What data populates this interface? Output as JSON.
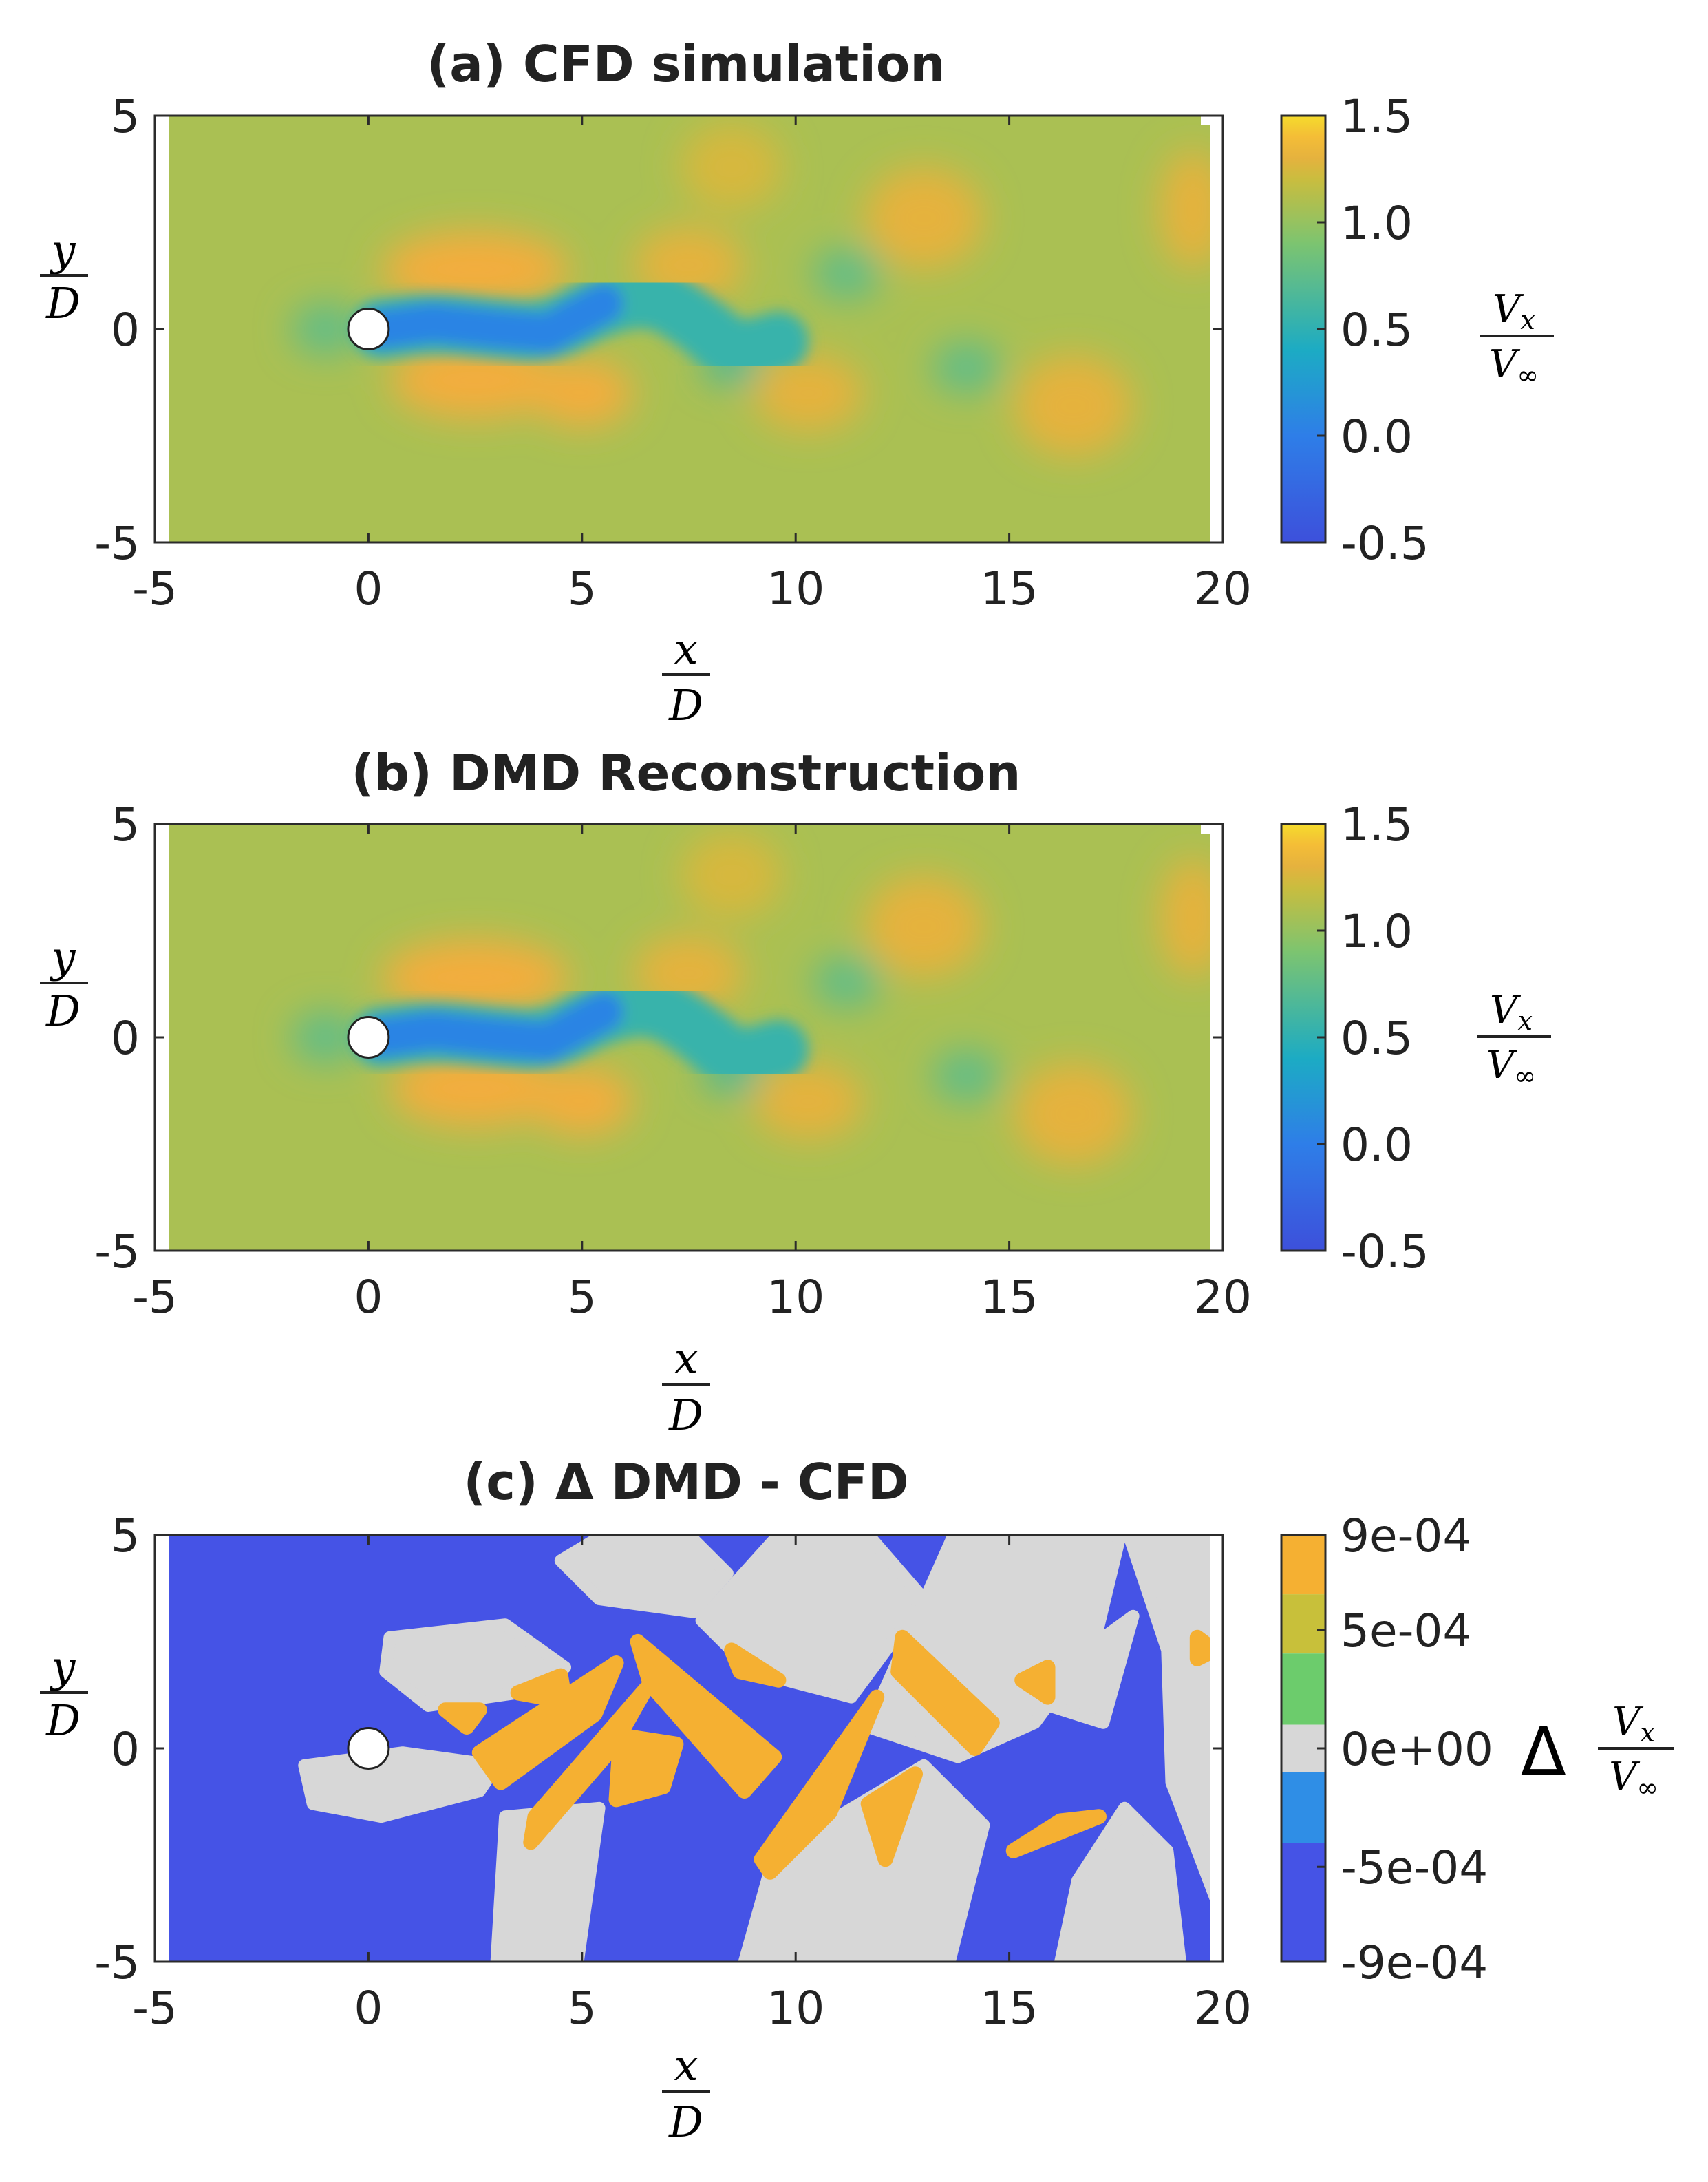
{
  "colors": {
    "field_low": "#3d50db",
    "field_blue": "#2e7ee8",
    "field_cyan": "#1cabc4",
    "field_green": "#7cc470",
    "field_olive": "#c9bd3f",
    "field_orange": "#f3ad3d",
    "field_yellow": "#f5dc2c",
    "diff_neg": "#4553e6",
    "diff_neg2": "#2f8ee6",
    "diff_zero": "#d7d7d7",
    "diff_pos_green": "#6ccc6c",
    "diff_pos_olive": "#c8c03a",
    "diff_pos_orange": "#f5b032",
    "cylinder": "#ffffff"
  },
  "chart_data": [
    {
      "panel": "a",
      "type": "heatmap",
      "title": "(a) CFD simulation",
      "xlabel": {
        "num": "x",
        "den": "D"
      },
      "ylabel": {
        "num": "y",
        "den": "D"
      },
      "xlim": [
        -5,
        20
      ],
      "ylim": [
        -5,
        5
      ],
      "xticks": [
        "-5",
        "0",
        "5",
        "10",
        "15",
        "20"
      ],
      "yticks": [
        "5",
        "0",
        "-5"
      ],
      "xtick_values": [
        -5,
        0,
        5,
        10,
        15,
        20
      ],
      "ytick_values": [
        5,
        0,
        -5
      ],
      "colorbar": {
        "label": {
          "num": "V",
          "num_sub": "x",
          "den": "V",
          "den_sub": "∞"
        },
        "ticks": [
          "1.5",
          "1.0",
          "0.5",
          "0.0",
          "-0.5"
        ],
        "tick_values": [
          1.5,
          1.0,
          0.5,
          0.0,
          -0.5
        ],
        "range": [
          -0.5,
          1.5
        ]
      },
      "cylinder": {
        "x": 0,
        "y": 0,
        "diameter": 1
      },
      "blobs": [
        {
          "x": 2.5,
          "y": 1.4,
          "rx": 2.2,
          "ry": 0.9,
          "value": 1.35
        },
        {
          "x": 2.5,
          "y": -1.2,
          "rx": 2.0,
          "ry": 0.9,
          "value": 1.35
        },
        {
          "x": 5.0,
          "y": -1.5,
          "rx": 1.2,
          "ry": 0.8,
          "value": 1.35
        },
        {
          "x": 7.5,
          "y": 1.5,
          "rx": 1.3,
          "ry": 0.9,
          "value": 1.3
        },
        {
          "x": 10.3,
          "y": -1.5,
          "rx": 1.3,
          "ry": 0.9,
          "value": 1.3
        },
        {
          "x": 13.0,
          "y": 2.6,
          "rx": 1.4,
          "ry": 1.2,
          "value": 1.3
        },
        {
          "x": 16.5,
          "y": -1.8,
          "rx": 1.4,
          "ry": 1.2,
          "value": 1.3
        },
        {
          "x": 19.3,
          "y": 2.8,
          "rx": 0.8,
          "ry": 1.4,
          "value": 1.3
        },
        {
          "x": 8.5,
          "y": 3.8,
          "rx": 1.2,
          "ry": 1.0,
          "value": 1.25
        },
        {
          "x": -1.0,
          "y": 0.0,
          "rx": 0.8,
          "ry": 0.6,
          "value": 0.75
        },
        {
          "x": 11.2,
          "y": 1.3,
          "rx": 0.8,
          "ry": 0.6,
          "value": 0.75
        },
        {
          "x": 14.0,
          "y": -0.9,
          "rx": 0.8,
          "ry": 0.6,
          "value": 0.75
        },
        {
          "x": 8.5,
          "y": -0.8,
          "rx": 0.7,
          "ry": 0.5,
          "value": 0.65
        }
      ],
      "wake_path": [
        [
          0.3,
          0.0
        ],
        [
          1.5,
          0.15
        ],
        [
          3.0,
          0.0
        ],
        [
          4.2,
          -0.1
        ],
        [
          5.5,
          0.6
        ],
        [
          6.7,
          0.8
        ],
        [
          7.8,
          0.1
        ],
        [
          8.6,
          -0.6
        ],
        [
          9.6,
          -0.3
        ]
      ]
    },
    {
      "panel": "b",
      "type": "heatmap",
      "title": "(b) DMD Reconstruction",
      "xlabel": {
        "num": "x",
        "den": "D"
      },
      "ylabel": {
        "num": "y",
        "den": "D"
      },
      "xlim": [
        -5,
        20
      ],
      "ylim": [
        -5,
        5
      ],
      "xticks": [
        "-5",
        "0",
        "5",
        "10",
        "15",
        "20"
      ],
      "yticks": [
        "5",
        "0",
        "-5"
      ],
      "xtick_values": [
        -5,
        0,
        5,
        10,
        15,
        20
      ],
      "ytick_values": [
        5,
        0,
        -5
      ],
      "colorbar": {
        "label": {
          "num": "V",
          "num_sub": "x",
          "den": "V",
          "den_sub": "∞"
        },
        "ticks": [
          "1.5",
          "1.0",
          "0.5",
          "0.0",
          "-0.5"
        ],
        "tick_values": [
          1.5,
          1.0,
          0.5,
          0.0,
          -0.5
        ],
        "range": [
          -0.5,
          1.5
        ]
      },
      "cylinder": {
        "x": 0,
        "y": 0,
        "diameter": 1
      },
      "blobs": [
        {
          "x": 2.5,
          "y": 1.4,
          "rx": 2.2,
          "ry": 0.9,
          "value": 1.35
        },
        {
          "x": 2.5,
          "y": -1.2,
          "rx": 2.0,
          "ry": 0.9,
          "value": 1.35
        },
        {
          "x": 5.0,
          "y": -1.5,
          "rx": 1.2,
          "ry": 0.8,
          "value": 1.35
        },
        {
          "x": 7.5,
          "y": 1.5,
          "rx": 1.3,
          "ry": 0.9,
          "value": 1.3
        },
        {
          "x": 10.3,
          "y": -1.5,
          "rx": 1.3,
          "ry": 0.9,
          "value": 1.3
        },
        {
          "x": 13.0,
          "y": 2.6,
          "rx": 1.4,
          "ry": 1.2,
          "value": 1.3
        },
        {
          "x": 16.5,
          "y": -1.8,
          "rx": 1.4,
          "ry": 1.2,
          "value": 1.3
        },
        {
          "x": 19.3,
          "y": 2.8,
          "rx": 0.8,
          "ry": 1.4,
          "value": 1.3
        },
        {
          "x": 8.5,
          "y": 3.8,
          "rx": 1.2,
          "ry": 1.0,
          "value": 1.25
        },
        {
          "x": -1.0,
          "y": 0.0,
          "rx": 0.8,
          "ry": 0.6,
          "value": 0.75
        },
        {
          "x": 11.2,
          "y": 1.3,
          "rx": 0.8,
          "ry": 0.6,
          "value": 0.75
        },
        {
          "x": 14.0,
          "y": -0.9,
          "rx": 0.8,
          "ry": 0.6,
          "value": 0.75
        },
        {
          "x": 8.5,
          "y": -0.8,
          "rx": 0.7,
          "ry": 0.5,
          "value": 0.65
        }
      ],
      "wake_path": [
        [
          0.3,
          0.0
        ],
        [
          1.5,
          0.15
        ],
        [
          3.0,
          0.0
        ],
        [
          4.2,
          -0.1
        ],
        [
          5.5,
          0.6
        ],
        [
          6.7,
          0.8
        ],
        [
          7.8,
          0.1
        ],
        [
          8.6,
          -0.6
        ],
        [
          9.6,
          -0.3
        ]
      ]
    },
    {
      "panel": "c",
      "type": "heatmap",
      "title": "(c) Δ DMD - CFD",
      "xlabel": {
        "num": "x",
        "den": "D"
      },
      "ylabel": {
        "num": "y",
        "den": "D"
      },
      "xlim": [
        -5,
        20
      ],
      "ylim": [
        -5,
        5
      ],
      "xticks": [
        "-5",
        "0",
        "5",
        "10",
        "15",
        "20"
      ],
      "yticks": [
        "5",
        "0",
        "-5"
      ],
      "xtick_values": [
        -5,
        0,
        5,
        10,
        15,
        20
      ],
      "ytick_values": [
        5,
        0,
        -5
      ],
      "colorbar": {
        "label_prefix": "Δ",
        "label": {
          "num": "V",
          "num_sub": "x",
          "den": "V",
          "den_sub": "∞"
        },
        "ticks": [
          "9e-04",
          "5e-04",
          "0e+00",
          "-5e-04",
          "-9e-04"
        ],
        "tick_values": [
          0.0009,
          0.0005,
          0.0,
          -0.0005,
          -0.0009
        ],
        "range": [
          -0.0009,
          0.0009
        ],
        "levels": [
          {
            "from": 0.00065,
            "to": 0.0009,
            "color": "diff_pos_orange"
          },
          {
            "from": 0.0004,
            "to": 0.00065,
            "color": "diff_pos_olive"
          },
          {
            "from": 0.0001,
            "to": 0.0004,
            "color": "diff_pos_green"
          },
          {
            "from": -0.0001,
            "to": 0.0001,
            "color": "diff_zero"
          },
          {
            "from": -0.0004,
            "to": -0.0001,
            "color": "diff_neg2"
          },
          {
            "from": -0.0009,
            "to": -0.0004,
            "color": "diff_neg"
          }
        ]
      },
      "cylinder": {
        "x": 0,
        "y": 0,
        "diameter": 1
      },
      "zero_regions": [
        [
          [
            0.5,
            2.6
          ],
          [
            3.2,
            2.9
          ],
          [
            4.6,
            1.9
          ],
          [
            3.5,
            1.3
          ],
          [
            1.4,
            1.0
          ],
          [
            0.4,
            1.8
          ]
        ],
        [
          [
            -1.5,
            -0.4
          ],
          [
            0.8,
            -0.1
          ],
          [
            3.0,
            -0.4
          ],
          [
            2.6,
            -1.0
          ],
          [
            0.3,
            -1.6
          ],
          [
            -1.3,
            -1.3
          ]
        ],
        [
          [
            3.2,
            -1.6
          ],
          [
            5.4,
            -1.4
          ],
          [
            4.9,
            -5.0
          ],
          [
            3.0,
            -5.0
          ]
        ],
        [
          [
            5.5,
            5.0
          ],
          [
            7.5,
            5.0
          ],
          [
            8.4,
            4.1
          ],
          [
            7.6,
            3.2
          ],
          [
            5.4,
            3.5
          ],
          [
            4.5,
            4.4
          ]
        ],
        [
          [
            7.8,
            3.0
          ],
          [
            9.6,
            5.0
          ],
          [
            11.7,
            5.0
          ],
          [
            13.0,
            3.5
          ],
          [
            11.3,
            1.2
          ],
          [
            9.0,
            1.8
          ]
        ],
        [
          [
            9.5,
            -2.5
          ],
          [
            13.0,
            -0.4
          ],
          [
            14.4,
            -1.8
          ],
          [
            13.6,
            -5.0
          ],
          [
            8.8,
            -5.0
          ]
        ],
        [
          [
            11.7,
            0.5
          ],
          [
            13.7,
            5.0
          ],
          [
            17.6,
            5.0
          ],
          [
            17.0,
            2.5
          ],
          [
            15.6,
            0.6
          ],
          [
            13.8,
            -0.2
          ]
        ],
        [
          [
            15.3,
            1.2
          ],
          [
            17.9,
            3.1
          ],
          [
            17.2,
            0.6
          ]
        ],
        [
          [
            16.2,
            -5.0
          ],
          [
            19.0,
            -5.0
          ],
          [
            18.7,
            -2.4
          ],
          [
            17.7,
            -1.4
          ],
          [
            16.6,
            -3.1
          ]
        ],
        [
          [
            17.8,
            5.0
          ],
          [
            19.9,
            5.0
          ],
          [
            19.9,
            -3.7
          ],
          [
            18.8,
            -0.8
          ],
          [
            18.7,
            2.3
          ]
        ]
      ],
      "pos_regions": [
        [
          [
            1.8,
            0.9
          ],
          [
            2.6,
            0.9
          ],
          [
            2.3,
            0.5
          ]
        ],
        [
          [
            3.5,
            1.3
          ],
          [
            4.5,
            1.7
          ],
          [
            4.6,
            1.1
          ]
        ],
        [
          [
            2.6,
            -0.1
          ],
          [
            5.8,
            2.0
          ],
          [
            5.3,
            0.8
          ],
          [
            3.1,
            -0.8
          ]
        ],
        [
          [
            3.9,
            -1.6
          ],
          [
            6.5,
            1.4
          ],
          [
            5.7,
            0.0
          ],
          [
            3.8,
            -2.2
          ]
        ],
        [
          [
            5.9,
            0.3
          ],
          [
            7.2,
            0.1
          ],
          [
            6.9,
            -0.9
          ],
          [
            5.8,
            -1.2
          ]
        ],
        [
          [
            6.3,
            2.5
          ],
          [
            9.5,
            -0.2
          ],
          [
            8.8,
            -1.0
          ],
          [
            6.6,
            1.5
          ]
        ],
        [
          [
            8.5,
            2.3
          ],
          [
            9.6,
            1.6
          ],
          [
            8.7,
            1.8
          ]
        ],
        [
          [
            9.2,
            -2.6
          ],
          [
            11.9,
            1.2
          ],
          [
            10.8,
            -1.5
          ],
          [
            9.4,
            -2.9
          ]
        ],
        [
          [
            11.7,
            -1.3
          ],
          [
            12.8,
            -0.6
          ],
          [
            12.1,
            -2.6
          ]
        ],
        [
          [
            12.5,
            2.6
          ],
          [
            14.6,
            0.6
          ],
          [
            14.2,
            0.0
          ],
          [
            12.4,
            1.8
          ]
        ],
        [
          [
            15.3,
            1.6
          ],
          [
            15.9,
            1.9
          ],
          [
            15.9,
            1.2
          ]
        ],
        [
          [
            15.1,
            -2.4
          ],
          [
            17.1,
            -1.6
          ],
          [
            16.2,
            -1.7
          ]
        ],
        [
          [
            19.4,
            2.6
          ],
          [
            19.8,
            2.3
          ],
          [
            19.4,
            2.1
          ]
        ]
      ]
    }
  ]
}
